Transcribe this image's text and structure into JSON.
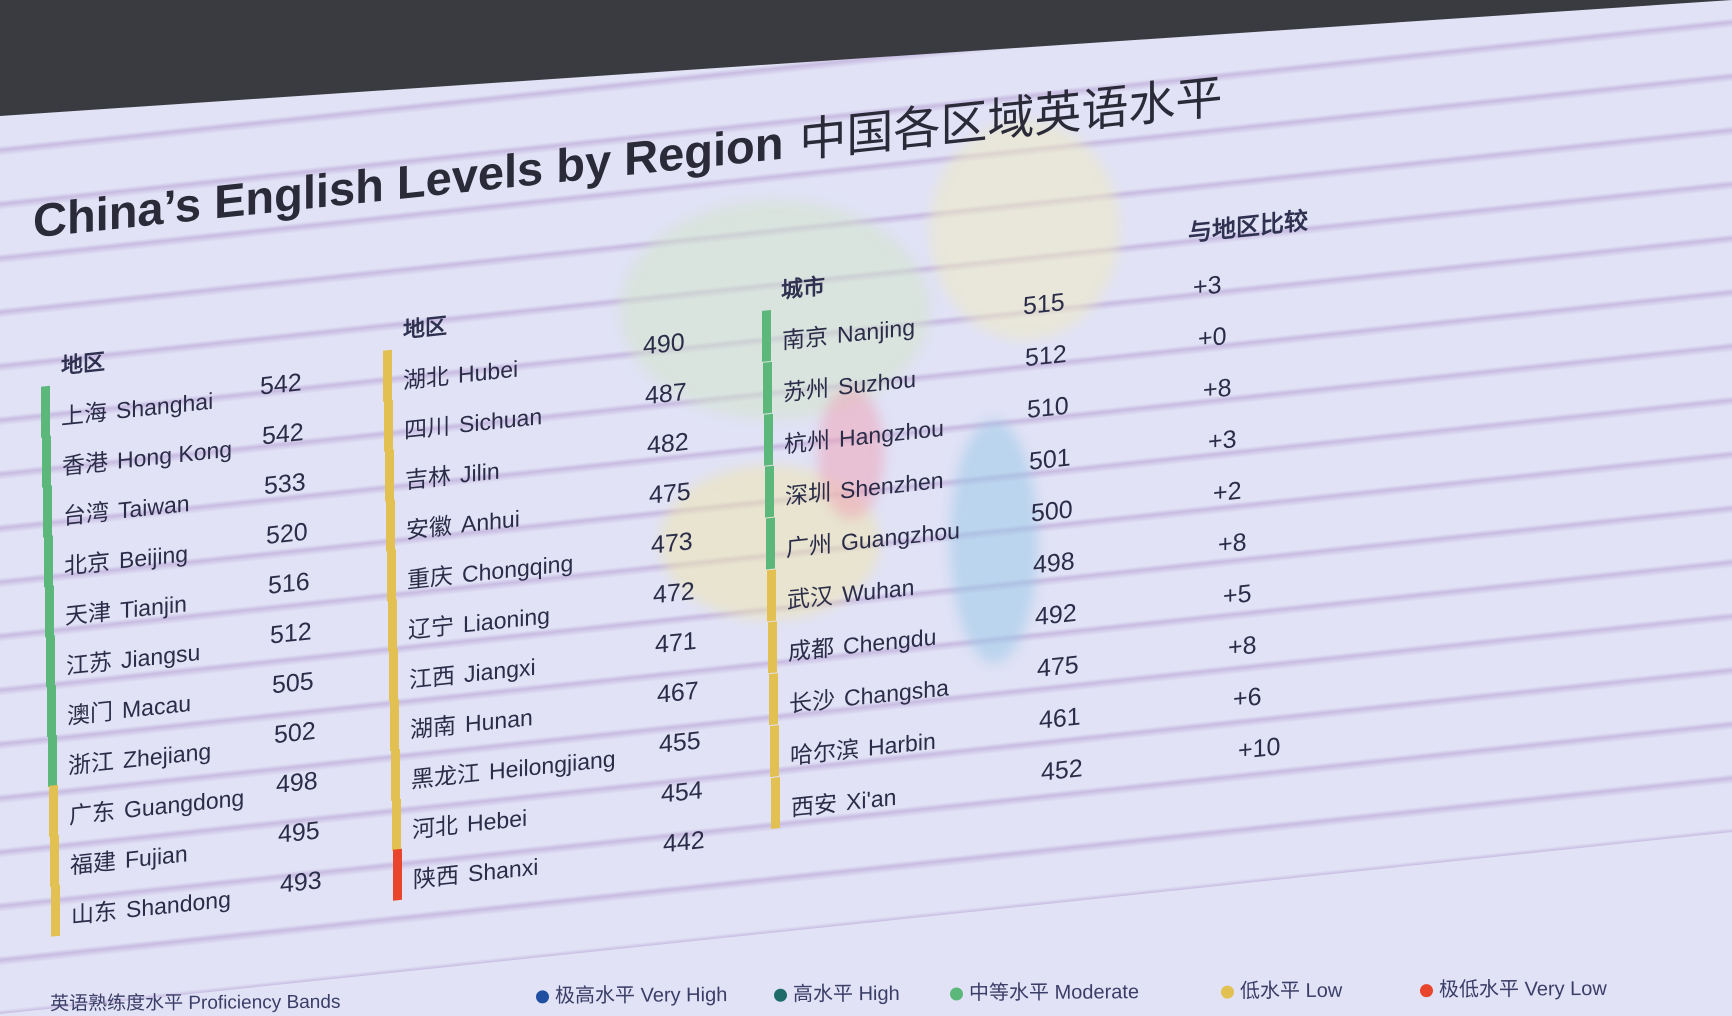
{
  "title": {
    "en": "China’s English Levels by Region",
    "zh": "中国各区域英语水平"
  },
  "band_colors": {
    "Very High": "#1f4fa0",
    "High": "#1e6b6a",
    "Moderate": "#5cb87a",
    "Low": "#e2c052",
    "Very Low": "#e8452c"
  },
  "columns": [
    {
      "header": "地区",
      "rows": [
        {
          "zh": "上海",
          "en": "Shanghai",
          "score": "542",
          "band": "Moderate"
        },
        {
          "zh": "香港",
          "en": "Hong Kong",
          "score": "542",
          "band": "Moderate"
        },
        {
          "zh": "台湾",
          "en": "Taiwan",
          "score": "533",
          "band": "Moderate"
        },
        {
          "zh": "北京",
          "en": "Beijing",
          "score": "520",
          "band": "Moderate"
        },
        {
          "zh": "天津",
          "en": "Tianjin",
          "score": "516",
          "band": "Moderate"
        },
        {
          "zh": "江苏",
          "en": "Jiangsu",
          "score": "512",
          "band": "Moderate"
        },
        {
          "zh": "澳门",
          "en": "Macau",
          "score": "505",
          "band": "Moderate"
        },
        {
          "zh": "浙江",
          "en": "Zhejiang",
          "score": "502",
          "band": "Moderate"
        },
        {
          "zh": "广东",
          "en": "Guangdong",
          "score": "498",
          "band": "Low"
        },
        {
          "zh": "福建",
          "en": "Fujian",
          "score": "495",
          "band": "Low"
        },
        {
          "zh": "山东",
          "en": "Shandong",
          "score": "493",
          "band": "Low"
        }
      ]
    },
    {
      "header": "地区",
      "rows": [
        {
          "zh": "湖北",
          "en": "Hubei",
          "score": "490",
          "band": "Low"
        },
        {
          "zh": "四川",
          "en": "Sichuan",
          "score": "487",
          "band": "Low"
        },
        {
          "zh": "吉林",
          "en": "Jilin",
          "score": "482",
          "band": "Low"
        },
        {
          "zh": "安徽",
          "en": "Anhui",
          "score": "475",
          "band": "Low"
        },
        {
          "zh": "重庆",
          "en": "Chongqing",
          "score": "473",
          "band": "Low"
        },
        {
          "zh": "辽宁",
          "en": "Liaoning",
          "score": "472",
          "band": "Low"
        },
        {
          "zh": "江西",
          "en": "Jiangxi",
          "score": "471",
          "band": "Low"
        },
        {
          "zh": "湖南",
          "en": "Hunan",
          "score": "467",
          "band": "Low"
        },
        {
          "zh": "黑龙江",
          "en": "Heilongjiang",
          "score": "455",
          "band": "Low"
        },
        {
          "zh": "河北",
          "en": "Hebei",
          "score": "454",
          "band": "Low"
        },
        {
          "zh": "陕西",
          "en": "Shanxi",
          "score": "442",
          "band": "Very Low"
        }
      ]
    },
    {
      "header": "城市",
      "compare_header": "与地区比较",
      "rows": [
        {
          "zh": "南京",
          "en": "Nanjing",
          "score": "515",
          "compare": "+3",
          "band": "Moderate"
        },
        {
          "zh": "苏州",
          "en": "Suzhou",
          "score": "512",
          "compare": "+0",
          "band": "Moderate"
        },
        {
          "zh": "杭州",
          "en": "Hangzhou",
          "score": "510",
          "compare": "+8",
          "band": "Moderate"
        },
        {
          "zh": "深圳",
          "en": "Shenzhen",
          "score": "501",
          "compare": "+3",
          "band": "Moderate"
        },
        {
          "zh": "广州",
          "en": "Guangzhou",
          "score": "500",
          "compare": "+2",
          "band": "Moderate"
        },
        {
          "zh": "武汉",
          "en": "Wuhan",
          "score": "498",
          "compare": "+8",
          "band": "Low"
        },
        {
          "zh": "成都",
          "en": "Chengdu",
          "score": "492",
          "compare": "+5",
          "band": "Low"
        },
        {
          "zh": "长沙",
          "en": "Changsha",
          "score": "475",
          "compare": "+8",
          "band": "Low"
        },
        {
          "zh": "哈尔滨",
          "en": "Harbin",
          "score": "461",
          "compare": "+6",
          "band": "Low"
        },
        {
          "zh": "西安",
          "en": "Xi'an",
          "score": "452",
          "compare": "+10",
          "band": "Low"
        }
      ]
    }
  ],
  "legend": {
    "label": "英语熟练度水平 Proficiency Bands",
    "items": [
      {
        "label": "极高水平 Very High",
        "band": "Very High"
      },
      {
        "label": "高水平 High",
        "band": "High"
      },
      {
        "label": "中等水平 Moderate",
        "band": "Moderate"
      },
      {
        "label": "低水平 Low",
        "band": "Low"
      },
      {
        "label": "极低水平 Very Low",
        "band": "Very Low"
      }
    ]
  }
}
